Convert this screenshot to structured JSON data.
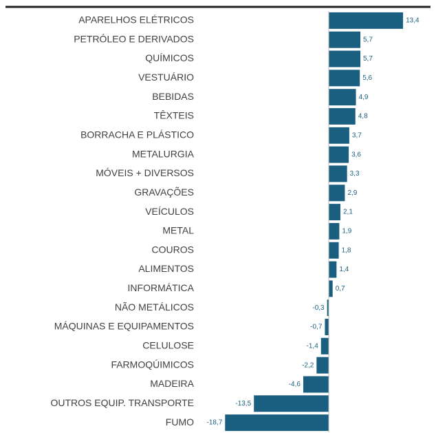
{
  "chart_data": {
    "type": "barh",
    "categories": [
      "APARELHOS ELÉTRICOS",
      "PETRÓLEO E DERIVADOS",
      "QUÍMICOS",
      "VESTUÁRIO",
      "BEBIDAS",
      "TÊXTEIS",
      "BORRACHA E PLÁSTICO",
      "METALURGIA",
      "MÓVEIS + DIVERSOS",
      "GRAVAÇÕES",
      "VEÍCULOS",
      "METAL",
      "COUROS",
      "ALIMENTOS",
      "INFORMÁTICA",
      "NÃO METÁLICOS",
      "MÁQUINAS E EQUIPAMENTOS",
      "CELULOSE",
      "FARMOQÚIMICOS",
      "MADEIRA",
      "OUTROS EQUIP. TRANSPORTE",
      "FUMO"
    ],
    "values": [
      13.4,
      5.7,
      5.7,
      5.6,
      4.9,
      4.8,
      3.7,
      3.6,
      3.3,
      2.9,
      2.1,
      1.9,
      1.8,
      1.4,
      0.7,
      -0.3,
      -0.7,
      -1.4,
      -2.2,
      -4.6,
      -13.5,
      -18.7
    ],
    "value_labels": [
      "13,4",
      "5,7",
      "5,7",
      "5,6",
      "4,9",
      "4,8",
      "3,7",
      "3,6",
      "3,3",
      "2,9",
      "2,1",
      "1,9",
      "1,8",
      "1,4",
      "0,7",
      "-0,3",
      "-0,7",
      "-1,4",
      "-2,2",
      "-4,6",
      "-13,5",
      "-18,7"
    ],
    "color": "#1b5f80",
    "xlim": [
      -20,
      15
    ]
  }
}
